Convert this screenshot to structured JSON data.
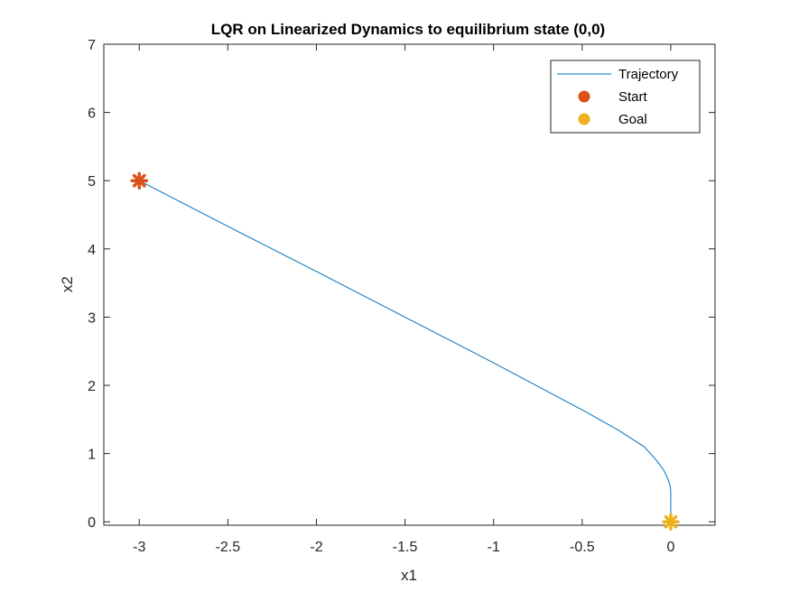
{
  "chart_data": {
    "type": "line",
    "title": "LQR on Linearized Dynamics to equilibrium state (0,0)",
    "xlabel": "x1",
    "ylabel": "x2",
    "xlim": [
      -3.2,
      0.25
    ],
    "ylim": [
      -0.05,
      7
    ],
    "xticks": [
      -3,
      -2.5,
      -2,
      -1.5,
      -1,
      -0.5,
      0
    ],
    "xtick_labels": [
      "-3",
      "-2.5",
      "-2",
      "-1.5",
      "-1",
      "-0.5",
      "0"
    ],
    "yticks": [
      0,
      1,
      2,
      3,
      4,
      5,
      6,
      7
    ],
    "ytick_labels": [
      "0",
      "1",
      "2",
      "3",
      "4",
      "5",
      "6",
      "7"
    ],
    "grid": false,
    "legend_position": "top-right",
    "series": [
      {
        "name": "Trajectory",
        "kind": "line",
        "color": "#0072BD",
        "x": [
          -3.0,
          -2.5,
          -2.0,
          -1.5,
          -1.0,
          -0.5,
          -0.3,
          -0.15,
          -0.08,
          -0.04,
          -0.015,
          -0.003,
          0.0,
          0.0
        ],
        "y": [
          5.0,
          4.33,
          3.67,
          3.0,
          2.33,
          1.64,
          1.35,
          1.1,
          0.9,
          0.76,
          0.62,
          0.52,
          0.44,
          0.0
        ]
      },
      {
        "name": "Start",
        "kind": "marker",
        "color": "#D95319",
        "x": [
          -3.0
        ],
        "y": [
          5.0
        ]
      },
      {
        "name": "Goal",
        "kind": "marker",
        "color": "#EDB120",
        "x": [
          0.0
        ],
        "y": [
          0.0
        ]
      }
    ]
  }
}
